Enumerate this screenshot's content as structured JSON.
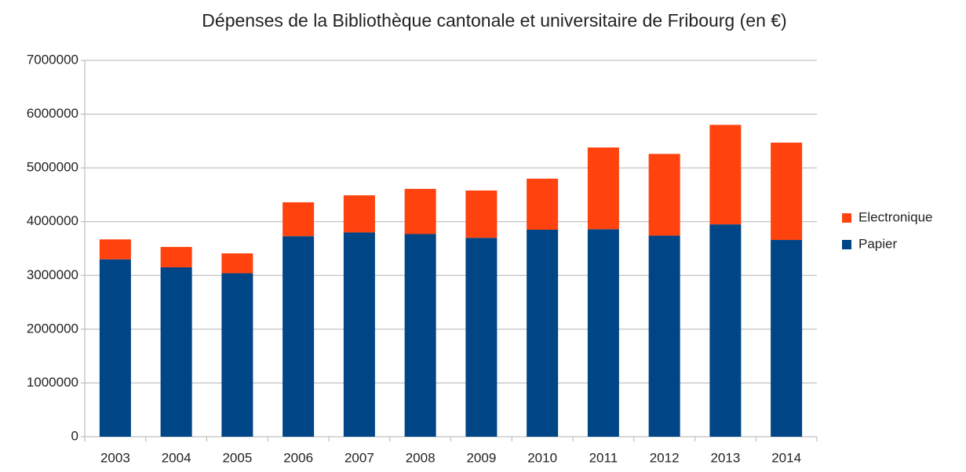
{
  "chart_data": {
    "type": "stacked_bar",
    "title": "Dépenses de la Bibliothèque cantonale et universitaire de Fribourg (en €)",
    "categories": [
      "2003",
      "2004",
      "2005",
      "2006",
      "2007",
      "2008",
      "2009",
      "2010",
      "2011",
      "2012",
      "2013",
      "2014"
    ],
    "series": [
      {
        "name": "Papier",
        "color": "#004586",
        "values": [
          3300000,
          3150000,
          3040000,
          3730000,
          3800000,
          3770000,
          3700000,
          3850000,
          3860000,
          3740000,
          3950000,
          3660000
        ]
      },
      {
        "name": "Electronique",
        "color": "#ff420e",
        "values": [
          370000,
          380000,
          370000,
          630000,
          690000,
          840000,
          880000,
          950000,
          1520000,
          1520000,
          1850000,
          1810000
        ]
      }
    ],
    "ylim": [
      0,
      7000000
    ],
    "yticks": [
      0,
      1000000,
      2000000,
      3000000,
      4000000,
      5000000,
      6000000,
      7000000
    ],
    "grid": true,
    "legend": "right"
  }
}
